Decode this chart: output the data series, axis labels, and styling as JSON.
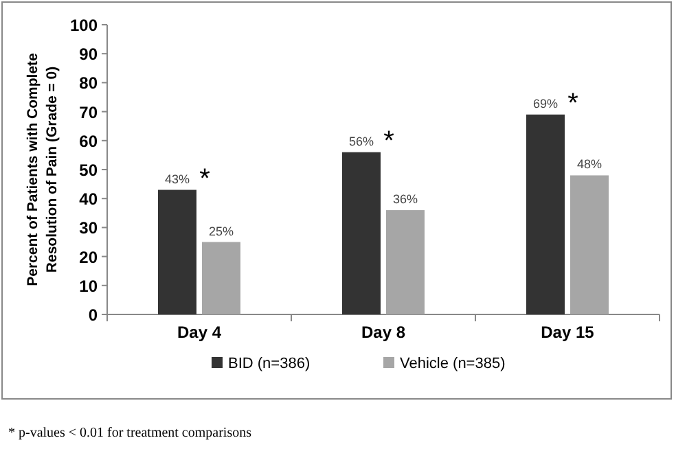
{
  "chart_data": {
    "type": "bar",
    "ylabel": "Percent of Patients with Complete Resolution of Pain (Grade = 0)",
    "categories": [
      "Day 4",
      "Day 8",
      "Day 15"
    ],
    "series": [
      {
        "name": "BID (n=386)",
        "color": "#333333",
        "values": [
          43,
          56,
          69
        ],
        "value_labels": [
          "43%",
          "56%",
          "69%"
        ]
      },
      {
        "name": "Vehicle (n=385)",
        "color": "#a6a6a6",
        "values": [
          25,
          36,
          48
        ],
        "value_labels": [
          "25%",
          "36%",
          "48%"
        ]
      }
    ],
    "ylim": [
      0,
      100
    ],
    "yticks": [
      0,
      10,
      20,
      30,
      40,
      50,
      60,
      70,
      80,
      90,
      100
    ],
    "grid": false,
    "legend": "bottom",
    "annotations": [
      {
        "text": "*",
        "x": "Day 4",
        "y": 43
      },
      {
        "text": "*",
        "x": "Day 8",
        "y": 56
      },
      {
        "text": "*",
        "x": "Day 15",
        "y": 69
      },
      "* p-values < 0.01 for treatment comparisons"
    ]
  }
}
